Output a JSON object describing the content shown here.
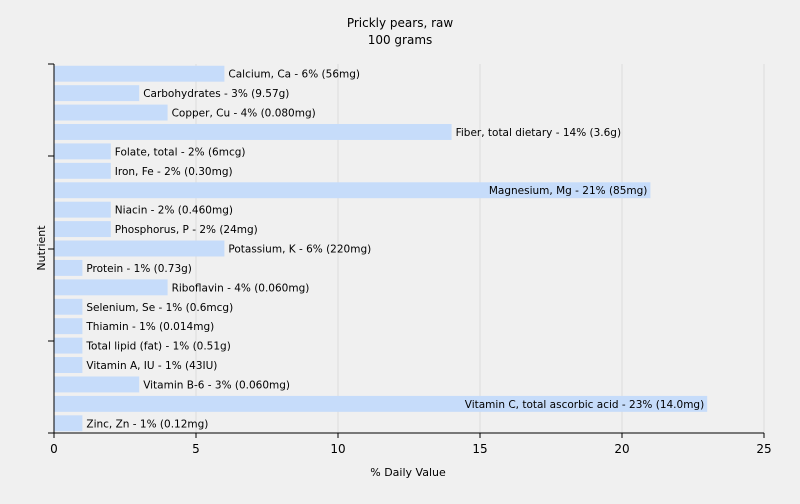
{
  "chart_data": {
    "type": "bar",
    "orientation": "horizontal",
    "title": "Prickly pears, raw",
    "subtitle": "100 grams",
    "xlabel": "% Daily Value",
    "ylabel": "Nutrient",
    "xlim": [
      0,
      25
    ],
    "xticks": [
      0,
      5,
      10,
      15,
      20,
      25
    ],
    "grid": true,
    "bar_color": "#c6dcfa",
    "categories": [
      "Calcium, Ca",
      "Carbohydrates",
      "Copper, Cu",
      "Fiber, total dietary",
      "Folate, total",
      "Iron, Fe",
      "Magnesium, Mg",
      "Niacin",
      "Phosphorus, P",
      "Potassium, K",
      "Protein",
      "Riboflavin",
      "Selenium, Se",
      "Thiamin",
      "Total lipid (fat)",
      "Vitamin A, IU",
      "Vitamin B-6",
      "Vitamin C, total ascorbic acid",
      "Zinc, Zn"
    ],
    "values": [
      6,
      3,
      4,
      14,
      2,
      2,
      21,
      2,
      2,
      6,
      1,
      4,
      1,
      1,
      1,
      1,
      3,
      23,
      1
    ],
    "labels": [
      "Calcium, Ca - 6% (56mg)",
      "Carbohydrates - 3% (9.57g)",
      "Copper, Cu - 4% (0.080mg)",
      "Fiber, total dietary - 14% (3.6g)",
      "Folate, total - 2% (6mcg)",
      "Iron, Fe - 2% (0.30mg)",
      "Magnesium, Mg - 21% (85mg)",
      "Niacin - 2% (0.460mg)",
      "Phosphorus, P - 2% (24mg)",
      "Potassium, K - 6% (220mg)",
      "Protein - 1% (0.73g)",
      "Riboflavin - 4% (0.060mg)",
      "Selenium, Se - 1% (0.6mcg)",
      "Thiamin - 1% (0.014mg)",
      "Total lipid (fat) - 1% (0.51g)",
      "Vitamin A, IU - 1% (43IU)",
      "Vitamin B-6 - 3% (0.060mg)",
      "Vitamin C, total ascorbic acid - 23% (14.0mg)",
      "Zinc, Zn - 1% (0.12mg)"
    ]
  }
}
